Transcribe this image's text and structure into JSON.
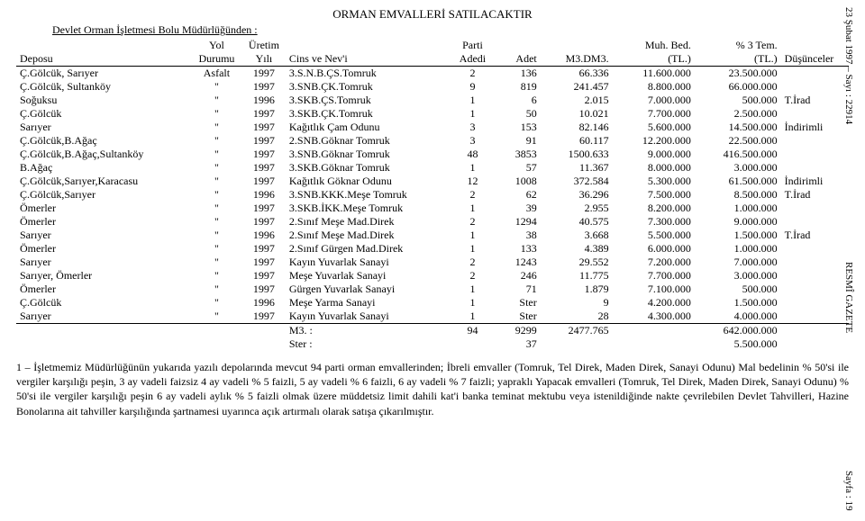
{
  "title": "ORMAN EMVALLERİ SATILACAKTIR",
  "subtitle": "Devlet Orman İşletmesi Bolu Müdürlüğünden :",
  "margin": {
    "top": "23 Şubat 1997 – Sayı : 22914",
    "mid": "RESMÎ GAZETE",
    "bot": "Sayfa : 19"
  },
  "head": {
    "r1": [
      "",
      "Yol",
      "Üretim",
      "",
      "Parti",
      "",
      "",
      "Muh. Bed.",
      "% 3 Tem.",
      ""
    ],
    "r2": [
      "Deposu",
      "Durumu",
      "Yılı",
      "Cins ve Nev'i",
      "Adedi",
      "Adet",
      "M3.DM3.",
      "(TL.)",
      "(TL.)",
      "Düşünceler"
    ]
  },
  "rows": [
    [
      "Ç.Gölcük, Sarıyer",
      "Asfalt",
      "1997",
      "3.S.N.B.ÇS.Tomruk",
      "2",
      "136",
      "66.336",
      "11.600.000",
      "23.500.000",
      ""
    ],
    [
      "Ç.Gölcük, Sultanköy",
      "\"",
      "1997",
      "3.SNB.ÇK.Tomruk",
      "9",
      "819",
      "241.457",
      "8.800.000",
      "66.000.000",
      ""
    ],
    [
      "Soğuksu",
      "\"",
      "1996",
      "3.SKB.ÇS.Tomruk",
      "1",
      "6",
      "2.015",
      "7.000.000",
      "500.000",
      "T.İrad"
    ],
    [
      "Ç.Gölcük",
      "\"",
      "1997",
      "3.SKB.ÇK.Tomruk",
      "1",
      "50",
      "10.021",
      "7.700.000",
      "2.500.000",
      ""
    ],
    [
      "Sarıyer",
      "\"",
      "1997",
      "Kağıtlık Çam Odunu",
      "3",
      "153",
      "82.146",
      "5.600.000",
      "14.500.000",
      "İndirimli"
    ],
    [
      "Ç.Gölcük,B.Ağaç",
      "\"",
      "1997",
      "2.SNB.Göknar Tomruk",
      "3",
      "91",
      "60.117",
      "12.200.000",
      "22.500.000",
      ""
    ],
    [
      "Ç.Gölcük,B.Ağaç,Sultanköy",
      "\"",
      "1997",
      "3.SNB.Göknar Tomruk",
      "48",
      "3853",
      "1500.633",
      "9.000.000",
      "416.500.000",
      ""
    ],
    [
      "B.Ağaç",
      "\"",
      "1997",
      "3.SKB.Göknar Tomruk",
      "1",
      "57",
      "11.367",
      "8.000.000",
      "3.000.000",
      ""
    ],
    [
      "Ç.Gölcük,Sarıyer,Karacasu",
      "\"",
      "1997",
      "Kağıtlık Göknar Odunu",
      "12",
      "1008",
      "372.584",
      "5.300.000",
      "61.500.000",
      "İndirimli"
    ],
    [
      "Ç.Gölcük,Sarıyer",
      "\"",
      "1996",
      "3.SNB.KKK.Meşe Tomruk",
      "2",
      "62",
      "36.296",
      "7.500.000",
      "8.500.000",
      "T.İrad"
    ],
    [
      "Ömerler",
      "\"",
      "1997",
      "3.SKB.İKK.Meşe Tomruk",
      "1",
      "39",
      "2.955",
      "8.200.000",
      "1.000.000",
      ""
    ],
    [
      "Ömerler",
      "\"",
      "1997",
      "2.Sınıf Meşe Mad.Direk",
      "2",
      "1294",
      "40.575",
      "7.300.000",
      "9.000.000",
      ""
    ],
    [
      "Sarıyer",
      "\"",
      "1996",
      "2.Sınıf Meşe Mad.Direk",
      "1",
      "38",
      "3.668",
      "5.500.000",
      "1.500.000",
      "T.İrad"
    ],
    [
      "Ömerler",
      "\"",
      "1997",
      "2.Sınıf Gürgen Mad.Direk",
      "1",
      "133",
      "4.389",
      "6.000.000",
      "1.000.000",
      ""
    ],
    [
      "Sarıyer",
      "\"",
      "1997",
      "Kayın Yuvarlak Sanayi",
      "2",
      "1243",
      "29.552",
      "7.200.000",
      "7.000.000",
      ""
    ],
    [
      "Sarıyer, Ömerler",
      "\"",
      "1997",
      "Meşe Yuvarlak Sanayi",
      "2",
      "246",
      "11.775",
      "7.700.000",
      "3.000.000",
      ""
    ],
    [
      "Ömerler",
      "\"",
      "1997",
      "Gürgen Yuvarlak Sanayi",
      "1",
      "71",
      "1.879",
      "7.100.000",
      "500.000",
      ""
    ],
    [
      "Ç.Gölcük",
      "\"",
      "1996",
      "Meşe Yarma Sanayi",
      "1",
      "Ster",
      "9",
      "4.200.000",
      "1.500.000",
      ""
    ],
    [
      "Sarıyer",
      "\"",
      "1997",
      "Kayın Yuvarlak Sanayi",
      "1",
      "Ster",
      "28",
      "4.300.000",
      "4.000.000",
      ""
    ]
  ],
  "totals": [
    [
      "",
      "",
      "",
      "M3. :",
      "94",
      "9299",
      "2477.765",
      "",
      "642.000.000",
      ""
    ],
    [
      "",
      "",
      "",
      "Ster :",
      "",
      "37",
      "",
      "",
      "5.500.000",
      ""
    ]
  ],
  "footnote": "1 – İşletmemiz Müdürlüğünün yukarıda yazılı depolarında mevcut 94 parti orman emvallerinden; İbreli emvaller (Tomruk, Tel Direk, Maden Direk, Sanayi Odunu) Mal bedelinin % 50'si ile vergiler karşılığı peşin, 3 ay vadeli faizsiz 4 ay vadeli % 5 faizli, 5 ay vadeli % 6 faizli, 6 ay vadeli % 7 faizli; yapraklı Yapacak emvalleri (Tomruk, Tel Direk, Maden Direk, Sanayi Odunu) % 50'si ile vergiler karşılığı peşin 6 ay vadeli aylık % 5 faizli olmak üzere müddetsiz limit dahili kat'i banka teminat mektubu veya istenildiğinde nakte çevrilebilen Devlet Tahvilleri, Hazine Bonolarına ait tahviller karşılığında şartnamesi uyarınca açık artırmalı olarak satışa çıkarılmıştır.",
  "col_align": [
    "a-left",
    "a-center",
    "a-center",
    "a-left",
    "a-center",
    "a-right",
    "a-right",
    "a-right",
    "a-right",
    "a-left"
  ]
}
